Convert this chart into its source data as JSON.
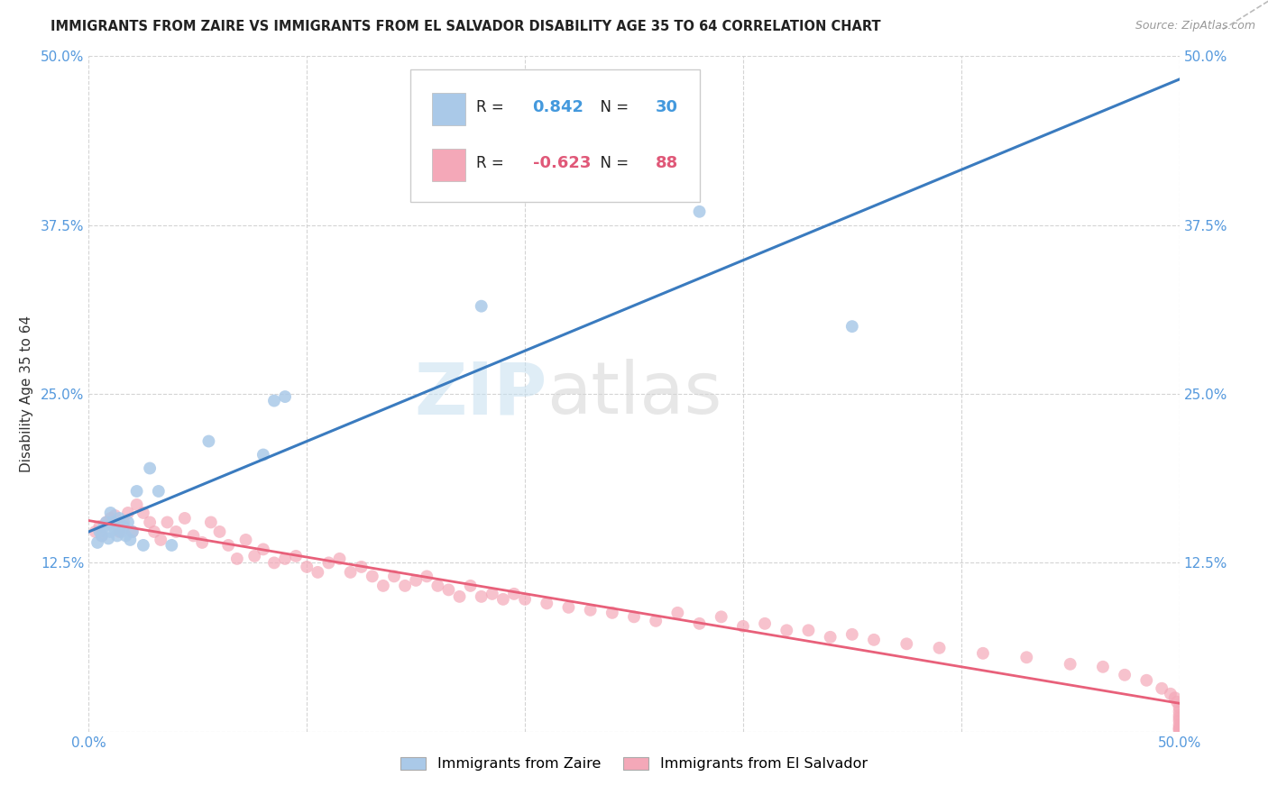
{
  "title": "IMMIGRANTS FROM ZAIRE VS IMMIGRANTS FROM EL SALVADOR DISABILITY AGE 35 TO 64 CORRELATION CHART",
  "source": "Source: ZipAtlas.com",
  "ylabel": "Disability Age 35 to 64",
  "xlim": [
    0.0,
    0.5
  ],
  "ylim": [
    0.0,
    0.5
  ],
  "xticks": [
    0.0,
    0.1,
    0.2,
    0.3,
    0.4,
    0.5
  ],
  "yticks": [
    0.0,
    0.125,
    0.25,
    0.375,
    0.5
  ],
  "xticklabels": [
    "0.0%",
    "",
    "",
    "",
    "",
    "50.0%"
  ],
  "yticklabels": [
    "",
    "12.5%",
    "25.0%",
    "37.5%",
    "50.0%"
  ],
  "blue_R": 0.842,
  "blue_N": 30,
  "pink_R": -0.623,
  "pink_N": 88,
  "blue_color": "#aac9e8",
  "pink_color": "#f4a8b8",
  "blue_line_color": "#3a7bbf",
  "pink_line_color": "#e8607a",
  "background_color": "#ffffff",
  "grid_color": "#d0d0d0",
  "blue_scatter_x": [
    0.004,
    0.005,
    0.006,
    0.007,
    0.008,
    0.009,
    0.01,
    0.01,
    0.011,
    0.012,
    0.013,
    0.014,
    0.015,
    0.016,
    0.017,
    0.018,
    0.019,
    0.02,
    0.022,
    0.025,
    0.028,
    0.032,
    0.038,
    0.055,
    0.08,
    0.085,
    0.09,
    0.18,
    0.28,
    0.35
  ],
  "blue_scatter_y": [
    0.14,
    0.148,
    0.145,
    0.152,
    0.155,
    0.143,
    0.148,
    0.162,
    0.155,
    0.15,
    0.145,
    0.158,
    0.148,
    0.152,
    0.145,
    0.155,
    0.142,
    0.148,
    0.178,
    0.138,
    0.195,
    0.178,
    0.138,
    0.215,
    0.205,
    0.245,
    0.248,
    0.315,
    0.385,
    0.3
  ],
  "pink_scatter_x": [
    0.003,
    0.005,
    0.006,
    0.008,
    0.01,
    0.012,
    0.014,
    0.016,
    0.018,
    0.02,
    0.022,
    0.025,
    0.028,
    0.03,
    0.033,
    0.036,
    0.04,
    0.044,
    0.048,
    0.052,
    0.056,
    0.06,
    0.064,
    0.068,
    0.072,
    0.076,
    0.08,
    0.085,
    0.09,
    0.095,
    0.1,
    0.105,
    0.11,
    0.115,
    0.12,
    0.125,
    0.13,
    0.135,
    0.14,
    0.145,
    0.15,
    0.155,
    0.16,
    0.165,
    0.17,
    0.175,
    0.18,
    0.185,
    0.19,
    0.195,
    0.2,
    0.21,
    0.22,
    0.23,
    0.24,
    0.25,
    0.26,
    0.27,
    0.28,
    0.29,
    0.3,
    0.31,
    0.32,
    0.33,
    0.34,
    0.35,
    0.36,
    0.375,
    0.39,
    0.41,
    0.43,
    0.45,
    0.465,
    0.475,
    0.485,
    0.492,
    0.496,
    0.498,
    0.499,
    0.5,
    0.5,
    0.5,
    0.5,
    0.5,
    0.5,
    0.5,
    0.5,
    0.5
  ],
  "pink_scatter_y": [
    0.148,
    0.152,
    0.145,
    0.155,
    0.158,
    0.16,
    0.148,
    0.155,
    0.162,
    0.148,
    0.168,
    0.162,
    0.155,
    0.148,
    0.142,
    0.155,
    0.148,
    0.158,
    0.145,
    0.14,
    0.155,
    0.148,
    0.138,
    0.128,
    0.142,
    0.13,
    0.135,
    0.125,
    0.128,
    0.13,
    0.122,
    0.118,
    0.125,
    0.128,
    0.118,
    0.122,
    0.115,
    0.108,
    0.115,
    0.108,
    0.112,
    0.115,
    0.108,
    0.105,
    0.1,
    0.108,
    0.1,
    0.102,
    0.098,
    0.102,
    0.098,
    0.095,
    0.092,
    0.09,
    0.088,
    0.085,
    0.082,
    0.088,
    0.08,
    0.085,
    0.078,
    0.08,
    0.075,
    0.075,
    0.07,
    0.072,
    0.068,
    0.065,
    0.062,
    0.058,
    0.055,
    0.05,
    0.048,
    0.042,
    0.038,
    0.032,
    0.028,
    0.025,
    0.022,
    0.018,
    0.015,
    0.012,
    0.01,
    0.008,
    0.005,
    0.003,
    0.002,
    0.001
  ]
}
